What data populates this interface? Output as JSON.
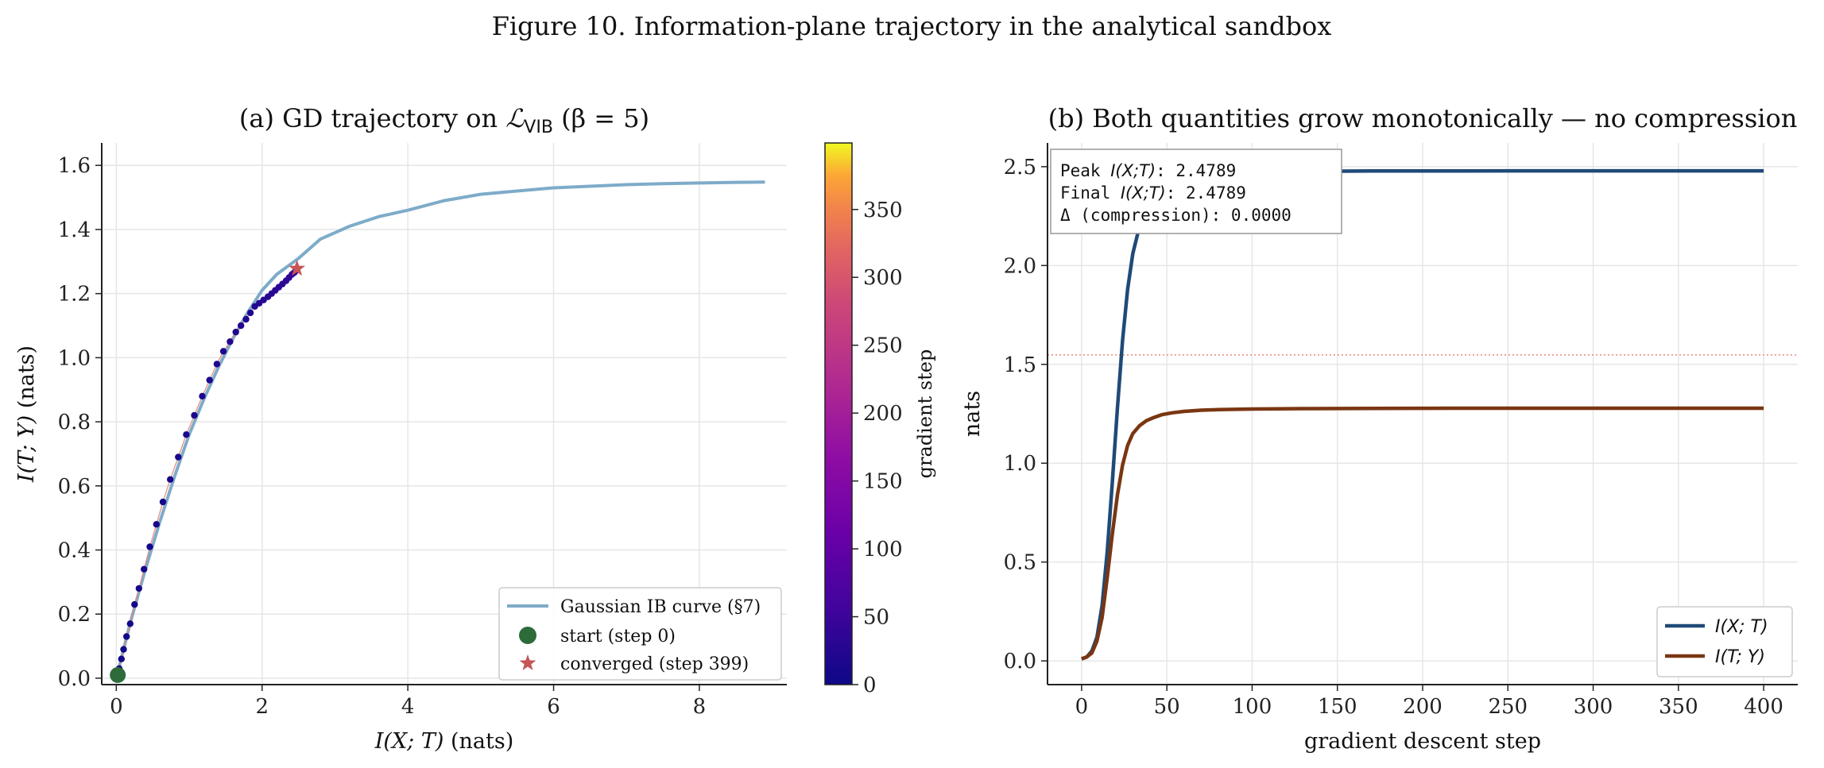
{
  "figure_title": "Figure 10. Information-plane trajectory in the analytical sandbox",
  "colors": {
    "ib_curve": "#7eabc9",
    "start": "#2e6b3a",
    "converged": "#c65555",
    "ixt": "#1f4a78",
    "ity": "#7a3612",
    "ref_line": "#e88a7a",
    "grid": "#e6e6e6",
    "colormap": "plasma"
  },
  "chart_data": [
    {
      "type": "scatter",
      "title_prefix": "(a) GD trajectory on ",
      "title_L": "ℒ",
      "title_sub": "VIB",
      "title_suffix": "  (β = 5)",
      "xlabel_var": "I(X; T)",
      "xlabel_unit": "  (nats)",
      "ylabel_var": "I(T; Y)",
      "ylabel_unit": "  (nats)",
      "xlim": [
        -0.2,
        9.2
      ],
      "ylim": [
        -0.02,
        1.67
      ],
      "xticks": [
        0,
        2,
        4,
        6,
        8
      ],
      "yticks": [
        0.0,
        0.2,
        0.4,
        0.6,
        0.8,
        1.0,
        1.2,
        1.4,
        1.6
      ],
      "grid": true,
      "legend_position": "lower right",
      "legend": [
        "Gaussian IB curve (§7)",
        "start  (step 0)",
        "converged  (step 399)"
      ],
      "colorbar": {
        "label": "gradient step",
        "ticks": [
          0,
          50,
          100,
          150,
          200,
          250,
          300,
          350
        ],
        "range": [
          0,
          399
        ]
      },
      "ib_curve": {
        "x": [
          0.0,
          0.2,
          0.4,
          0.6,
          0.8,
          1.0,
          1.2,
          1.4,
          1.6,
          1.8,
          2.0,
          2.2,
          2.5,
          2.8,
          3.2,
          3.6,
          4.0,
          4.5,
          5.0,
          5.5,
          6.0,
          6.5,
          7.0,
          7.5,
          8.0,
          8.5,
          8.9
        ],
        "y": [
          0.0,
          0.18,
          0.34,
          0.49,
          0.63,
          0.76,
          0.87,
          0.97,
          1.06,
          1.14,
          1.21,
          1.26,
          1.31,
          1.37,
          1.41,
          1.44,
          1.46,
          1.49,
          1.51,
          1.52,
          1.53,
          1.535,
          1.54,
          1.543,
          1.545,
          1.547,
          1.548
        ]
      },
      "trajectory": {
        "x": [
          0.02,
          0.04,
          0.07,
          0.1,
          0.14,
          0.19,
          0.25,
          0.31,
          0.38,
          0.46,
          0.55,
          0.64,
          0.74,
          0.85,
          0.96,
          1.07,
          1.18,
          1.28,
          1.38,
          1.47,
          1.56,
          1.64,
          1.71,
          1.78,
          1.84,
          1.9,
          1.96,
          2.02,
          2.08,
          2.13,
          2.18,
          2.23,
          2.28,
          2.33,
          2.37,
          2.41,
          2.44,
          2.46,
          2.478
        ],
        "y": [
          0.01,
          0.03,
          0.06,
          0.09,
          0.13,
          0.17,
          0.23,
          0.28,
          0.34,
          0.41,
          0.48,
          0.55,
          0.62,
          0.69,
          0.76,
          0.82,
          0.88,
          0.93,
          0.98,
          1.02,
          1.05,
          1.08,
          1.1,
          1.12,
          1.14,
          1.16,
          1.17,
          1.18,
          1.19,
          1.2,
          1.21,
          1.22,
          1.23,
          1.24,
          1.25,
          1.26,
          1.265,
          1.27,
          1.278
        ],
        "step": [
          0,
          1,
          2,
          3,
          4,
          5,
          6,
          7,
          8,
          9,
          10,
          11,
          12,
          13,
          14,
          15,
          16,
          17,
          18,
          19,
          20,
          21,
          22,
          23,
          24,
          25,
          26,
          27,
          28,
          29,
          30,
          32,
          34,
          36,
          38,
          40,
          42,
          44,
          46
        ]
      },
      "start": {
        "x": 0.02,
        "y": 0.01
      },
      "converged": {
        "x": 2.4789,
        "y": 1.278
      }
    },
    {
      "type": "line",
      "title": "(b) Both quantities grow monotonically — no compression",
      "xlabel": "gradient descent step",
      "ylabel": "nats",
      "xlim": [
        -20,
        420
      ],
      "ylim": [
        -0.12,
        2.62
      ],
      "xticks": [
        0,
        50,
        100,
        150,
        200,
        250,
        300,
        350,
        400
      ],
      "yticks": [
        0.0,
        0.5,
        1.0,
        1.5,
        2.0,
        2.5
      ],
      "grid": true,
      "legend_position": "lower right",
      "reference_line_y": 1.548,
      "series": [
        {
          "name": "I(X; T)",
          "x": [
            0,
            3,
            6,
            9,
            12,
            15,
            18,
            21,
            24,
            27,
            30,
            34,
            38,
            42,
            47,
            53,
            60,
            70,
            80,
            100,
            130,
            170,
            220,
            280,
            340,
            400
          ],
          "y": [
            0.01,
            0.02,
            0.05,
            0.12,
            0.28,
            0.55,
            0.9,
            1.28,
            1.62,
            1.88,
            2.06,
            2.2,
            2.29,
            2.35,
            2.39,
            2.42,
            2.44,
            2.455,
            2.465,
            2.472,
            2.476,
            2.478,
            2.4785,
            2.4789,
            2.4789,
            2.4789
          ]
        },
        {
          "name": "I(T; Y)",
          "x": [
            0,
            3,
            6,
            9,
            12,
            15,
            18,
            21,
            24,
            27,
            30,
            34,
            38,
            42,
            47,
            53,
            60,
            70,
            80,
            100,
            130,
            170,
            220,
            280,
            340,
            400
          ],
          "y": [
            0.01,
            0.02,
            0.04,
            0.1,
            0.22,
            0.42,
            0.64,
            0.84,
            0.99,
            1.09,
            1.15,
            1.19,
            1.215,
            1.23,
            1.245,
            1.255,
            1.262,
            1.268,
            1.271,
            1.274,
            1.276,
            1.277,
            1.278,
            1.278,
            1.278,
            1.278
          ]
        }
      ],
      "info_box": [
        {
          "pre": "Peak ",
          "var": "I(X;T)",
          "post": ":  2.4789"
        },
        {
          "pre": "Final ",
          "var": "I(X;T)",
          "post": ": 2.4789"
        },
        {
          "pre": "Δ (compression):  0.0000",
          "var": "",
          "post": ""
        }
      ]
    }
  ]
}
